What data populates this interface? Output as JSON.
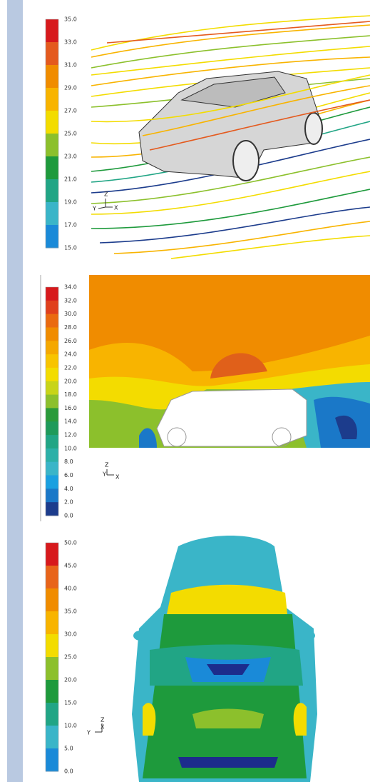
{
  "panels": [
    {
      "legend": {
        "labels": [
          "35.0",
          "33.0",
          "31.0",
          "29.0",
          "27.0",
          "25.0",
          "23.0",
          "21.0",
          "19.0",
          "17.0",
          "15.0"
        ],
        "colors": [
          "#d7191c",
          "#e45a1e",
          "#f08c00",
          "#f8b400",
          "#f3dc00",
          "#8cc02c",
          "#1e9a3c",
          "#21a585",
          "#3ab5c8",
          "#1a8ad8",
          "#1c3c8c"
        ]
      },
      "axes": [
        "Z",
        "Y",
        "X"
      ]
    },
    {
      "legend": {
        "labels": [
          "34.0",
          "32.0",
          "30.0",
          "28.0",
          "26.0",
          "24.0",
          "22.0",
          "20.0",
          "18.0",
          "16.0",
          "14.0",
          "12.0",
          "10.0",
          "8.0",
          "6.0",
          "4.0",
          "2.0",
          "0.0"
        ],
        "colors": [
          "#d7191c",
          "#e0401c",
          "#ea6a10",
          "#f08c00",
          "#f5a800",
          "#f8c400",
          "#f3dc00",
          "#c8d418",
          "#8cc02c",
          "#2a9a3a",
          "#1e9a5a",
          "#21a585",
          "#2cb0a8",
          "#3ab5c8",
          "#1aa0e0",
          "#1a78c8",
          "#1c3c8c"
        ]
      },
      "axes": [
        "Z",
        "Y",
        "X"
      ]
    },
    {
      "legend": {
        "labels": [
          "50.0",
          "45.0",
          "40.0",
          "35.0",
          "30.0",
          "25.0",
          "20.0",
          "15.0",
          "10.0",
          "5.0",
          "0.0"
        ],
        "colors": [
          "#d7191c",
          "#e8641a",
          "#f08c00",
          "#f8b400",
          "#f3dc00",
          "#8cc02c",
          "#1e9a3c",
          "#21a585",
          "#3ab5c8",
          "#1a8ad8",
          "#1c2c8c"
        ]
      },
      "axes": [
        "Z",
        "X",
        "Y"
      ]
    }
  ]
}
